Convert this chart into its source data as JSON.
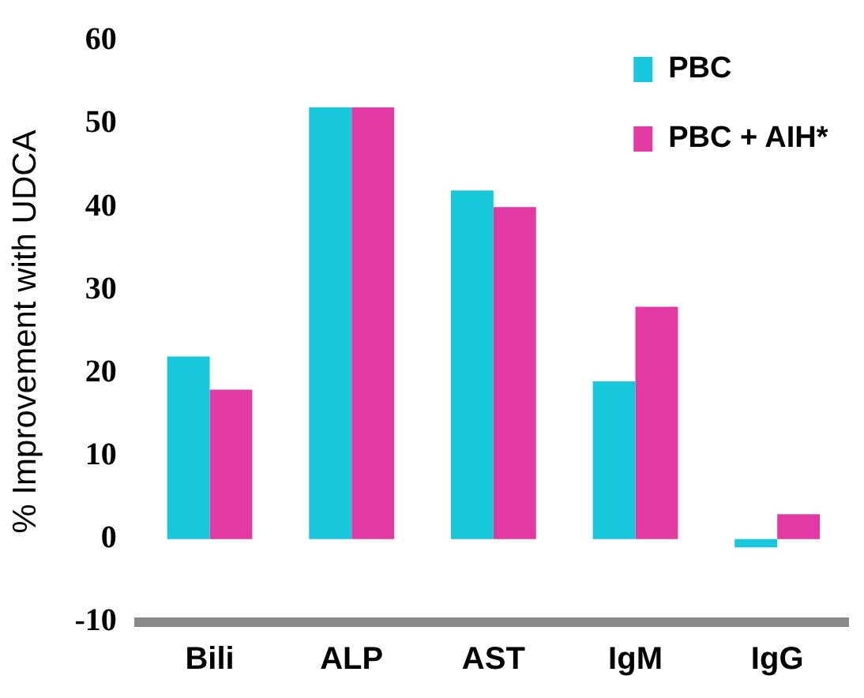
{
  "chart_data": {
    "type": "bar",
    "ylabel": "% Improvement with UDCA",
    "categories": [
      "Bili",
      "ALP",
      "AST",
      "IgM",
      "IgG"
    ],
    "series": [
      {
        "name": "PBC",
        "color": "#17c8dc",
        "values": [
          22,
          52,
          42,
          19,
          -1
        ]
      },
      {
        "name": "PBC + AIH*",
        "color": "#e23aa2",
        "values": [
          18,
          52,
          40,
          28,
          3
        ]
      }
    ],
    "ylim": [
      -10,
      60
    ],
    "yticks": [
      -10,
      0,
      10,
      20,
      30,
      40,
      50,
      60
    ],
    "grid": false,
    "legend": "top right"
  }
}
